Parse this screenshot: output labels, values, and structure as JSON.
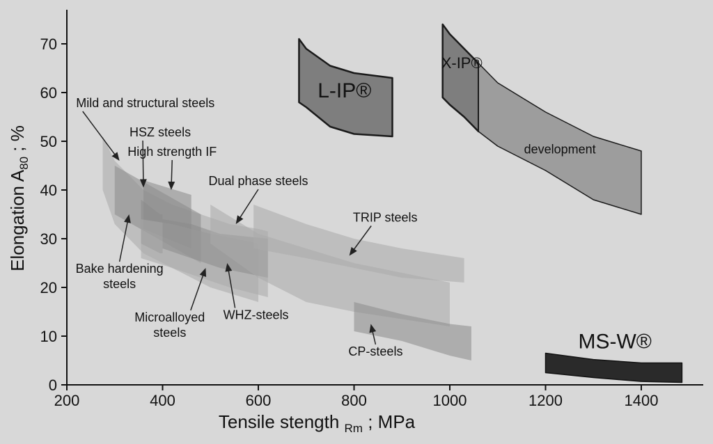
{
  "chart_data": {
    "type": "area",
    "title": "",
    "xlabel": "Tensile stength Rm ; MPa",
    "ylabel": "Elongation A80 ; %",
    "xlim": [
      200,
      1500
    ],
    "ylim": [
      0,
      75
    ],
    "xticks": [
      200,
      400,
      600,
      800,
      1000,
      1200,
      1400
    ],
    "yticks": [
      0,
      10,
      20,
      30,
      40,
      50,
      60,
      70
    ],
    "grid": false,
    "series": [
      {
        "name": "Mild and structural steels",
        "style": "light",
        "upper": [
          [
            275,
            51
          ],
          [
            300,
            46
          ],
          [
            360,
            40
          ],
          [
            420,
            37
          ],
          [
            480,
            35
          ],
          [
            540,
            33
          ],
          [
            600,
            32
          ],
          [
            620,
            31.5
          ]
        ],
        "lower": [
          [
            275,
            40
          ],
          [
            300,
            33
          ],
          [
            360,
            27
          ],
          [
            420,
            24
          ],
          [
            480,
            22
          ],
          [
            540,
            20
          ],
          [
            600,
            18.5
          ],
          [
            620,
            18
          ]
        ]
      },
      {
        "name": "HSZ steels",
        "style": "medium",
        "upper": [
          [
            300,
            45
          ],
          [
            480,
            35
          ]
        ],
        "lower": [
          [
            300,
            35
          ],
          [
            480,
            25
          ]
        ]
      },
      {
        "name": "High strength IF",
        "style": "medium",
        "upper": [
          [
            360,
            42
          ],
          [
            460,
            39
          ]
        ],
        "lower": [
          [
            360,
            32
          ],
          [
            460,
            28
          ]
        ]
      },
      {
        "name": "Bake hardening steels",
        "style": "medium",
        "upper": [
          [
            355,
            38
          ],
          [
            395,
            35
          ],
          [
            400,
            35
          ]
        ],
        "lower": [
          [
            355,
            29
          ],
          [
            395,
            27
          ],
          [
            400,
            27
          ]
        ]
      },
      {
        "name": "Microalloyed steels",
        "style": "light",
        "upper": [
          [
            355,
            34
          ],
          [
            420,
            33
          ],
          [
            500,
            31
          ],
          [
            600,
            29
          ]
        ],
        "lower": [
          [
            355,
            26
          ],
          [
            420,
            24
          ],
          [
            500,
            20
          ],
          [
            600,
            17
          ]
        ]
      },
      {
        "name": "WHZ-steels",
        "style": "medium",
        "upper": [
          [
            400,
            34
          ],
          [
            460,
            33
          ],
          [
            520,
            31
          ],
          [
            620,
            30
          ]
        ],
        "lower": [
          [
            400,
            28
          ],
          [
            460,
            26
          ],
          [
            520,
            24
          ],
          [
            620,
            22
          ]
        ]
      },
      {
        "name": "Dual phase steels",
        "style": "light",
        "upper": [
          [
            500,
            37
          ],
          [
            600,
            31
          ],
          [
            700,
            28
          ],
          [
            800,
            25
          ],
          [
            1000,
            21
          ]
        ],
        "lower": [
          [
            500,
            29
          ],
          [
            600,
            22
          ],
          [
            700,
            17
          ],
          [
            800,
            15
          ],
          [
            1000,
            12
          ]
        ]
      },
      {
        "name": "TRIP steels",
        "style": "light",
        "upper": [
          [
            590,
            37
          ],
          [
            700,
            33
          ],
          [
            800,
            30
          ],
          [
            900,
            28
          ],
          [
            1030,
            26
          ]
        ],
        "lower": [
          [
            590,
            28
          ],
          [
            700,
            26
          ],
          [
            800,
            24
          ],
          [
            900,
            22
          ],
          [
            1030,
            21
          ]
        ]
      },
      {
        "name": "CP-steels",
        "style": "medium",
        "upper": [
          [
            800,
            17
          ],
          [
            900,
            14.5
          ],
          [
            1000,
            12.5
          ],
          [
            1045,
            12
          ]
        ],
        "lower": [
          [
            800,
            11
          ],
          [
            900,
            9
          ],
          [
            1000,
            6
          ],
          [
            1045,
            5
          ]
        ]
      },
      {
        "name": "L-IP®",
        "style": "dark-outline",
        "upper": [
          [
            685,
            71
          ],
          [
            700,
            69
          ],
          [
            750,
            65.5
          ],
          [
            800,
            64
          ],
          [
            880,
            63
          ]
        ],
        "lower": [
          [
            685,
            58
          ],
          [
            700,
            57
          ],
          [
            750,
            53
          ],
          [
            800,
            51.5
          ],
          [
            880,
            51
          ]
        ]
      },
      {
        "name": "X-IP®",
        "style": "dark-outline",
        "upper": [
          [
            985,
            74
          ],
          [
            1000,
            72
          ],
          [
            1030,
            69
          ],
          [
            1060,
            66
          ]
        ],
        "lower": [
          [
            985,
            59
          ],
          [
            1000,
            57.5
          ],
          [
            1030,
            55
          ],
          [
            1060,
            52
          ]
        ]
      },
      {
        "name": "development",
        "style": "medium-outline",
        "upper": [
          [
            1060,
            66
          ],
          [
            1100,
            62
          ],
          [
            1200,
            56
          ],
          [
            1300,
            51
          ],
          [
            1400,
            48
          ]
        ],
        "lower": [
          [
            1060,
            52
          ],
          [
            1100,
            49
          ],
          [
            1200,
            44
          ],
          [
            1300,
            38
          ],
          [
            1400,
            35
          ]
        ]
      },
      {
        "name": "MS-W®",
        "style": "black",
        "upper": [
          [
            1200,
            6.5
          ],
          [
            1300,
            5.2
          ],
          [
            1400,
            4.5
          ],
          [
            1485,
            4.5
          ]
        ],
        "lower": [
          [
            1200,
            2.5
          ],
          [
            1300,
            1.5
          ],
          [
            1400,
            0.7
          ],
          [
            1485,
            0.5
          ]
        ]
      }
    ],
    "annotations": [
      {
        "id": "mild",
        "text": "Mild and structural steels",
        "anchor": [
          364,
          57
        ],
        "arrow_to": [
          310,
          46
        ]
      },
      {
        "id": "hsz",
        "text": "HSZ steels",
        "anchor": [
          395,
          51
        ],
        "arrow_to": [
          360,
          40.5
        ]
      },
      {
        "id": "hsif",
        "text": "High strength IF",
        "anchor": [
          420,
          47
        ],
        "arrow_to": [
          418,
          40
        ]
      },
      {
        "id": "dual",
        "text": "Dual phase steels",
        "anchor": [
          600,
          41
        ],
        "arrow_to": [
          553,
          33
        ]
      },
      {
        "id": "trip",
        "text": "TRIP steels",
        "anchor": [
          865,
          33.5
        ],
        "arrow_to": [
          790,
          26.5
        ]
      },
      {
        "id": "bake",
        "text": "Bake hardening steels",
        "lines": [
          "Bake hardening",
          "steels"
        ],
        "anchor": [
          310,
          23
        ],
        "arrow_to": [
          330,
          35
        ]
      },
      {
        "id": "micro",
        "text": "Microalloyed steels",
        "lines": [
          "Microalloyed",
          "steels"
        ],
        "anchor": [
          415,
          13
        ],
        "arrow_to": [
          490,
          24
        ]
      },
      {
        "id": "whz",
        "text": "WHZ-steels",
        "anchor": [
          595,
          13.5
        ],
        "arrow_to": [
          535,
          25
        ]
      },
      {
        "id": "cp",
        "text": "CP-steels",
        "anchor": [
          845,
          6
        ],
        "arrow_to": [
          835,
          12.5
        ]
      }
    ],
    "region_labels": [
      {
        "text": "L-IP®",
        "at": [
          780,
          59
        ],
        "size": "big"
      },
      {
        "text": "X-IP®",
        "at": [
          1025,
          65
        ],
        "size": "medium"
      },
      {
        "text": "development",
        "at": [
          1230,
          47.5
        ],
        "size": "small"
      },
      {
        "text": "MS-W®",
        "at": [
          1345,
          7.5
        ],
        "size": "big"
      }
    ]
  }
}
